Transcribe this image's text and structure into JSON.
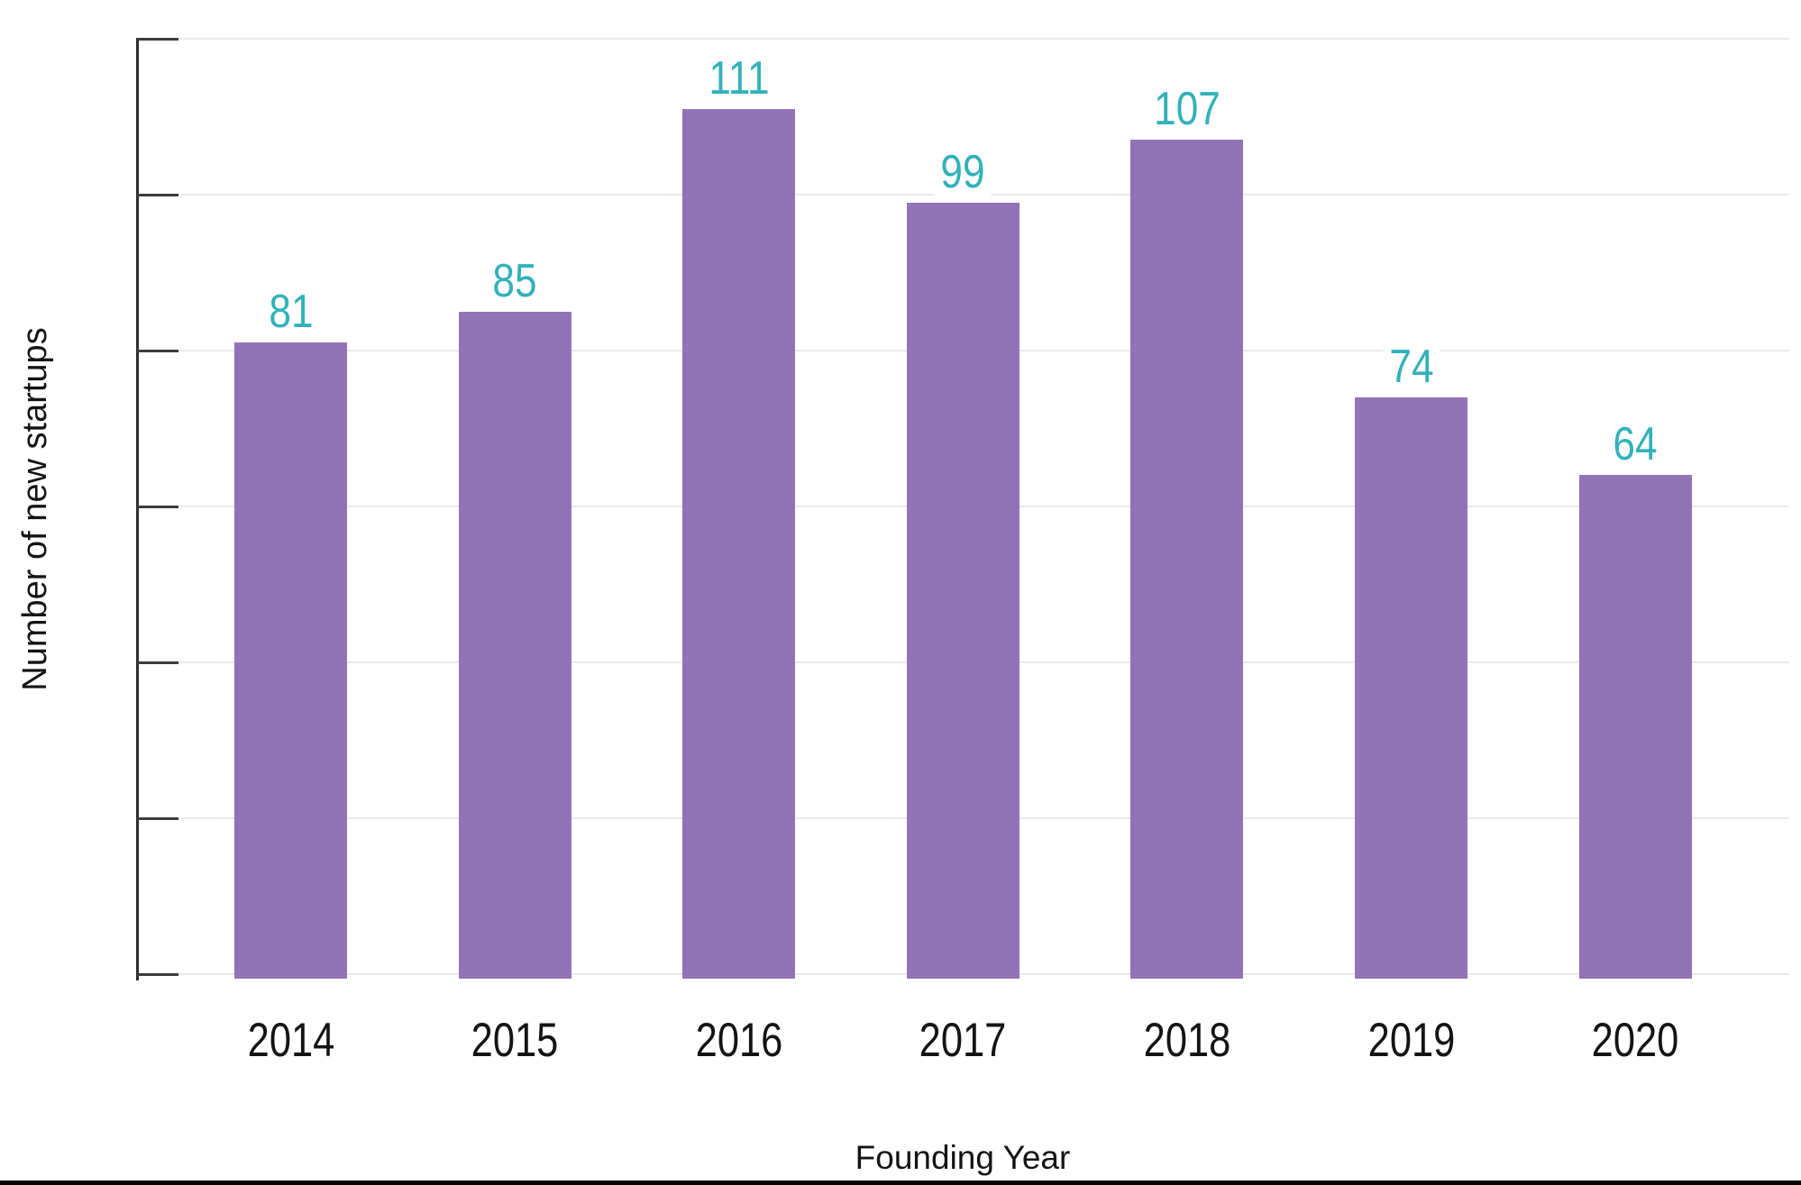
{
  "chart_data": {
    "type": "bar",
    "title": "",
    "categories": [
      "2014",
      "2015",
      "2016",
      "2017",
      "2018",
      "2019",
      "2020"
    ],
    "values": [
      81,
      85,
      111,
      99,
      107,
      74,
      64
    ],
    "xlabel": "Founding Year",
    "ylabel": "Number of new startups",
    "ylim": [
      0,
      120
    ],
    "ytick_interval": 20,
    "y_tick_labels_visible": false,
    "grid": "horizontal",
    "legend": "none",
    "bar_color": "#9273b5",
    "value_label_color": "#32b1ba",
    "axis_color": "#2e2e2e",
    "tick_color": "#3c3c3c",
    "gridline_color": "#e9e9ec",
    "text_color": "#141414"
  },
  "page": {
    "bottom_rule_color": "#000000"
  }
}
